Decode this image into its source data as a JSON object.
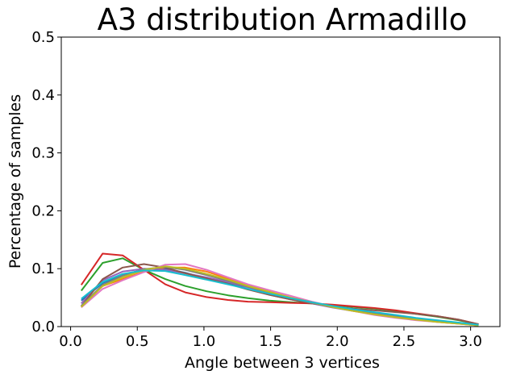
{
  "chart_data": {
    "type": "line",
    "title": "A3 distribution Armadillo",
    "xlabel": "Angle between 3 vertices",
    "ylabel": "Percentage of samples",
    "xlim": [
      -0.07,
      3.22
    ],
    "ylim": [
      0.0,
      0.5
    ],
    "xticks": [
      0.0,
      0.5,
      1.0,
      1.5,
      2.0,
      2.5,
      3.0
    ],
    "xtick_labels": [
      "0.0",
      "0.5",
      "1.0",
      "1.5",
      "2.0",
      "2.5",
      "3.0"
    ],
    "yticks": [
      0.0,
      0.1,
      0.2,
      0.3,
      0.4,
      0.5
    ],
    "ytick_labels": [
      "0.0",
      "0.1",
      "0.2",
      "0.3",
      "0.4",
      "0.5"
    ],
    "grid": false,
    "x": [
      0.08,
      0.24,
      0.39,
      0.55,
      0.71,
      0.86,
      1.02,
      1.18,
      1.33,
      1.49,
      1.65,
      1.81,
      1.96,
      2.12,
      2.28,
      2.44,
      2.59,
      2.75,
      2.91,
      3.06
    ],
    "series": [
      {
        "color": "#1f77b4",
        "values": [
          0.045,
          0.075,
          0.09,
          0.098,
          0.1,
          0.093,
          0.083,
          0.075,
          0.065,
          0.055,
          0.047,
          0.04,
          0.034,
          0.028,
          0.023,
          0.018,
          0.014,
          0.01,
          0.006,
          0.003
        ]
      },
      {
        "color": "#ff7f0e",
        "values": [
          0.035,
          0.07,
          0.082,
          0.095,
          0.102,
          0.102,
          0.095,
          0.083,
          0.071,
          0.06,
          0.05,
          0.041,
          0.034,
          0.027,
          0.021,
          0.016,
          0.012,
          0.008,
          0.005,
          0.002
        ]
      },
      {
        "color": "#2ca02c",
        "values": [
          0.062,
          0.11,
          0.118,
          0.098,
          0.082,
          0.07,
          0.061,
          0.054,
          0.049,
          0.045,
          0.042,
          0.04,
          0.037,
          0.034,
          0.031,
          0.027,
          0.022,
          0.017,
          0.011,
          0.004
        ]
      },
      {
        "color": "#d62728",
        "values": [
          0.072,
          0.126,
          0.123,
          0.098,
          0.073,
          0.059,
          0.051,
          0.046,
          0.043,
          0.042,
          0.041,
          0.04,
          0.038,
          0.035,
          0.032,
          0.028,
          0.023,
          0.018,
          0.012,
          0.004
        ]
      },
      {
        "color": "#9467bd",
        "values": [
          0.04,
          0.08,
          0.095,
          0.1,
          0.098,
          0.092,
          0.085,
          0.077,
          0.068,
          0.058,
          0.048,
          0.04,
          0.033,
          0.027,
          0.022,
          0.017,
          0.013,
          0.009,
          0.006,
          0.003
        ]
      },
      {
        "color": "#8c564b",
        "values": [
          0.035,
          0.082,
          0.102,
          0.108,
          0.102,
          0.092,
          0.083,
          0.074,
          0.064,
          0.055,
          0.047,
          0.04,
          0.035,
          0.031,
          0.028,
          0.025,
          0.022,
          0.018,
          0.012,
          0.004
        ]
      },
      {
        "color": "#e377c2",
        "values": [
          0.033,
          0.065,
          0.08,
          0.094,
          0.107,
          0.108,
          0.098,
          0.085,
          0.073,
          0.063,
          0.053,
          0.043,
          0.035,
          0.027,
          0.02,
          0.015,
          0.011,
          0.008,
          0.005,
          0.002
        ]
      },
      {
        "color": "#7f7f7f",
        "values": [
          0.036,
          0.072,
          0.088,
          0.099,
          0.103,
          0.098,
          0.089,
          0.079,
          0.069,
          0.059,
          0.049,
          0.041,
          0.034,
          0.028,
          0.022,
          0.017,
          0.013,
          0.009,
          0.006,
          0.002
        ]
      },
      {
        "color": "#bcbd22",
        "values": [
          0.034,
          0.07,
          0.085,
          0.098,
          0.104,
          0.1,
          0.091,
          0.081,
          0.07,
          0.06,
          0.05,
          0.042,
          0.034,
          0.027,
          0.021,
          0.016,
          0.012,
          0.008,
          0.005,
          0.002
        ]
      },
      {
        "color": "#17becf",
        "values": [
          0.048,
          0.077,
          0.091,
          0.097,
          0.096,
          0.089,
          0.081,
          0.073,
          0.065,
          0.057,
          0.049,
          0.042,
          0.036,
          0.03,
          0.025,
          0.02,
          0.015,
          0.011,
          0.007,
          0.003
        ]
      }
    ]
  }
}
